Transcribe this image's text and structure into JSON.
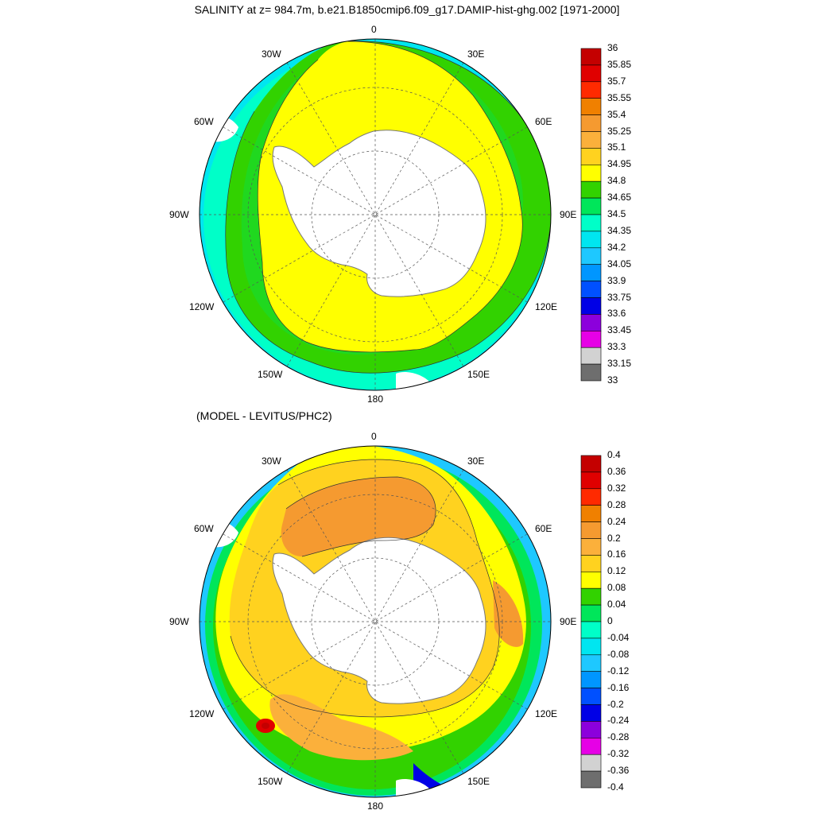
{
  "title": "SALINITY at z= 984.7m, b.e21.B1850cmip6.f09_g17.DAMIP-hist-ghg.002 [1971-2000]",
  "subtitle": "(MODEL - LEVITUS/PHC2)",
  "longitude_labels": [
    "0",
    "30E",
    "60E",
    "90E",
    "120E",
    "150E",
    "180",
    "150W",
    "120W",
    "90W",
    "60W",
    "30W"
  ],
  "top_colorbar": {
    "labels": [
      "36",
      "35.85",
      "35.7",
      "35.55",
      "35.4",
      "35.25",
      "35.1",
      "34.95",
      "34.8",
      "34.65",
      "34.5",
      "34.35",
      "34.2",
      "34.05",
      "33.9",
      "33.75",
      "33.6",
      "33.45",
      "33.3",
      "33.15",
      "33"
    ],
    "colors": [
      "#c40000",
      "#e00000",
      "#ff2a00",
      "#f08000",
      "#f59a30",
      "#fbb03b",
      "#ffd21f",
      "#ffff00",
      "#32d200",
      "#00e65a",
      "#00ffc8",
      "#00e6f0",
      "#1ec8ff",
      "#0096ff",
      "#0050ff",
      "#0000e6",
      "#8c00dc",
      "#e600e6",
      "#d2d2d2",
      "#6e6e6e"
    ]
  },
  "bottom_colorbar": {
    "labels": [
      "0.4",
      "0.36",
      "0.32",
      "0.28",
      "0.24",
      "0.2",
      "0.16",
      "0.12",
      "0.08",
      "0.04",
      "0",
      "-0.04",
      "-0.08",
      "-0.12",
      "-0.16",
      "-0.2",
      "-0.24",
      "-0.28",
      "-0.32",
      "-0.36",
      "-0.4"
    ],
    "colors": [
      "#c40000",
      "#e00000",
      "#ff2a00",
      "#f08000",
      "#f59a30",
      "#fbb03b",
      "#ffd21f",
      "#ffff00",
      "#32d200",
      "#00e65a",
      "#00ffc8",
      "#00e6f0",
      "#1ec8ff",
      "#0096ff",
      "#0050ff",
      "#0000e6",
      "#8c00dc",
      "#e600e6",
      "#d2d2d2",
      "#6e6e6e"
    ]
  }
}
